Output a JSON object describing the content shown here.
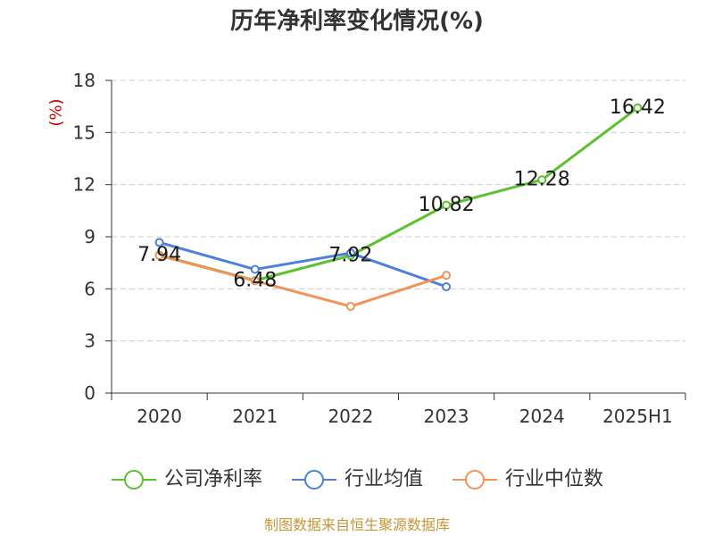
{
  "chart_data": {
    "type": "line",
    "title": "历年净利率变化情况(%)",
    "xlabel": "",
    "ylabel": "(%)",
    "categories": [
      "2020",
      "2021",
      "2022",
      "2023",
      "2024",
      "2025H1"
    ],
    "ylim": [
      0,
      18
    ],
    "yticks": [
      0,
      3,
      6,
      9,
      12,
      15,
      18
    ],
    "grid": true,
    "legend_position": "bottom",
    "series": [
      {
        "name": "公司净利率",
        "color": "#5bc12e",
        "data_labels": true,
        "values": [
          7.94,
          6.48,
          7.92,
          10.82,
          12.28,
          16.42
        ]
      },
      {
        "name": "行业均值",
        "color": "#4d7fdc",
        "data_labels": false,
        "values": [
          8.67,
          7.12,
          8.06,
          6.12,
          null,
          null
        ]
      },
      {
        "name": "行业中位数",
        "color": "#f3935a",
        "data_labels": false,
        "values": [
          7.92,
          6.46,
          4.99,
          6.78,
          null,
          null
        ]
      }
    ]
  },
  "source_note": "制图数据来自恒生聚源数据库",
  "colors": {
    "title": "#333333",
    "ylabel": "#cc0000",
    "axis": "#333333",
    "grid": "#cccccc",
    "source_note": "#c4963a"
  }
}
